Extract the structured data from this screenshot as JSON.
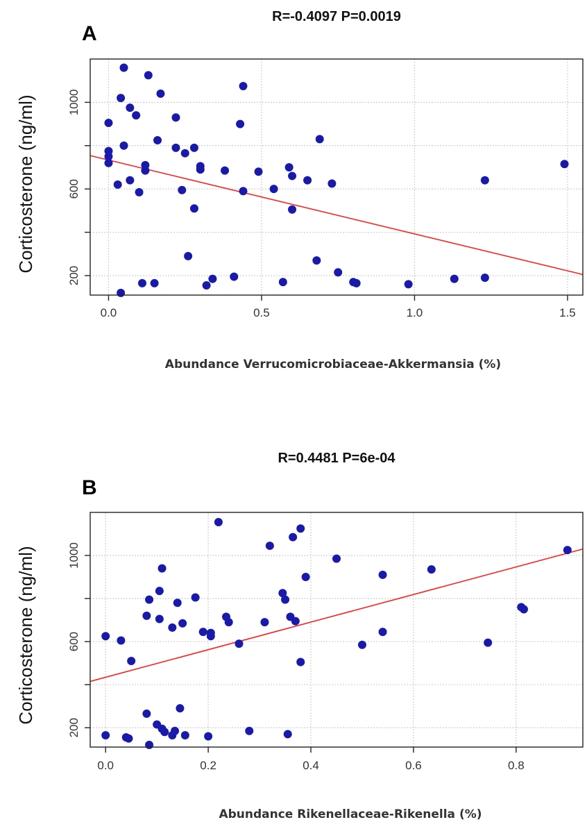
{
  "chart_data": [
    {
      "type": "scatter",
      "panel_label": "A",
      "title": "R=-0.4097 P=0.0019",
      "xlabel": "Abundance  Verrucomicrobiaceae-Akkermansia (%)",
      "ylabel": "Corticosterone (ng/ml)",
      "xlim": [
        -0.06,
        1.55
      ],
      "ylim": [
        110,
        1200
      ],
      "xticks": [
        0.0,
        0.5,
        1.0,
        1.5
      ],
      "xtick_labels": [
        "0.0",
        "0.5",
        "1.0",
        "1.5"
      ],
      "yticks": [
        200,
        400,
        600,
        800,
        1000
      ],
      "ytick_labels": [
        "200",
        "",
        "600",
        "",
        "1000"
      ],
      "grid": true,
      "point_color": "#1a1aaa",
      "line_color": "#ff2222",
      "trend_line": {
        "x": [
          -0.06,
          1.55
        ],
        "y": [
          754,
          205
        ]
      },
      "points": [
        {
          "x": 0.0,
          "y": 905
        },
        {
          "x": 0.0,
          "y": 775
        },
        {
          "x": 0.0,
          "y": 750
        },
        {
          "x": 0.0,
          "y": 720
        },
        {
          "x": 0.03,
          "y": 620
        },
        {
          "x": 0.04,
          "y": 120
        },
        {
          "x": 0.04,
          "y": 1020
        },
        {
          "x": 0.05,
          "y": 1160
        },
        {
          "x": 0.05,
          "y": 800
        },
        {
          "x": 0.07,
          "y": 975
        },
        {
          "x": 0.07,
          "y": 640
        },
        {
          "x": 0.09,
          "y": 940
        },
        {
          "x": 0.1,
          "y": 585
        },
        {
          "x": 0.11,
          "y": 165
        },
        {
          "x": 0.12,
          "y": 710
        },
        {
          "x": 0.12,
          "y": 685
        },
        {
          "x": 0.13,
          "y": 1125
        },
        {
          "x": 0.15,
          "y": 165
        },
        {
          "x": 0.16,
          "y": 825
        },
        {
          "x": 0.17,
          "y": 1040
        },
        {
          "x": 0.22,
          "y": 790
        },
        {
          "x": 0.22,
          "y": 930
        },
        {
          "x": 0.24,
          "y": 595
        },
        {
          "x": 0.25,
          "y": 765
        },
        {
          "x": 0.26,
          "y": 290
        },
        {
          "x": 0.28,
          "y": 790
        },
        {
          "x": 0.28,
          "y": 510
        },
        {
          "x": 0.3,
          "y": 705
        },
        {
          "x": 0.3,
          "y": 690
        },
        {
          "x": 0.32,
          "y": 155
        },
        {
          "x": 0.34,
          "y": 185
        },
        {
          "x": 0.38,
          "y": 685
        },
        {
          "x": 0.41,
          "y": 195
        },
        {
          "x": 0.43,
          "y": 900
        },
        {
          "x": 0.44,
          "y": 1075
        },
        {
          "x": 0.44,
          "y": 590
        },
        {
          "x": 0.49,
          "y": 680
        },
        {
          "x": 0.54,
          "y": 600
        },
        {
          "x": 0.57,
          "y": 170
        },
        {
          "x": 0.59,
          "y": 700
        },
        {
          "x": 0.6,
          "y": 660
        },
        {
          "x": 0.6,
          "y": 505
        },
        {
          "x": 0.65,
          "y": 640
        },
        {
          "x": 0.68,
          "y": 270
        },
        {
          "x": 0.69,
          "y": 830
        },
        {
          "x": 0.73,
          "y": 625
        },
        {
          "x": 0.75,
          "y": 215
        },
        {
          "x": 0.8,
          "y": 170
        },
        {
          "x": 0.81,
          "y": 165
        },
        {
          "x": 0.98,
          "y": 160
        },
        {
          "x": 1.13,
          "y": 185
        },
        {
          "x": 1.23,
          "y": 640
        },
        {
          "x": 1.23,
          "y": 190
        },
        {
          "x": 1.49,
          "y": 715
        }
      ]
    },
    {
      "type": "scatter",
      "panel_label": "B",
      "title": "R=0.4481 P=6e-04",
      "xlabel": "Abundance  Rikenellaceae-Rikenella (%)",
      "ylabel": "Corticosterone (ng/ml)",
      "xlim": [
        -0.03,
        0.93
      ],
      "ylim": [
        110,
        1200
      ],
      "xticks": [
        0.0,
        0.2,
        0.4,
        0.6,
        0.8
      ],
      "xtick_labels": [
        "0.0",
        "0.2",
        "0.4",
        "0.6",
        "0.8"
      ],
      "yticks": [
        200,
        400,
        600,
        800,
        1000
      ],
      "ytick_labels": [
        "200",
        "",
        "600",
        "",
        "1000"
      ],
      "grid": true,
      "point_color": "#1a1aaa",
      "line_color": "#ff2222",
      "trend_line": {
        "x": [
          -0.03,
          0.93
        ],
        "y": [
          415,
          1030
        ]
      },
      "points": [
        {
          "x": 0.0,
          "y": 625
        },
        {
          "x": 0.0,
          "y": 165
        },
        {
          "x": 0.03,
          "y": 605
        },
        {
          "x": 0.04,
          "y": 155
        },
        {
          "x": 0.045,
          "y": 150
        },
        {
          "x": 0.05,
          "y": 510
        },
        {
          "x": 0.08,
          "y": 720
        },
        {
          "x": 0.08,
          "y": 265
        },
        {
          "x": 0.085,
          "y": 795
        },
        {
          "x": 0.085,
          "y": 120
        },
        {
          "x": 0.1,
          "y": 215
        },
        {
          "x": 0.105,
          "y": 835
        },
        {
          "x": 0.105,
          "y": 705
        },
        {
          "x": 0.11,
          "y": 195
        },
        {
          "x": 0.11,
          "y": 940
        },
        {
          "x": 0.115,
          "y": 180
        },
        {
          "x": 0.13,
          "y": 665
        },
        {
          "x": 0.13,
          "y": 165
        },
        {
          "x": 0.135,
          "y": 185
        },
        {
          "x": 0.14,
          "y": 780
        },
        {
          "x": 0.145,
          "y": 290
        },
        {
          "x": 0.15,
          "y": 685
        },
        {
          "x": 0.155,
          "y": 165
        },
        {
          "x": 0.175,
          "y": 805
        },
        {
          "x": 0.19,
          "y": 645
        },
        {
          "x": 0.2,
          "y": 160
        },
        {
          "x": 0.205,
          "y": 625
        },
        {
          "x": 0.205,
          "y": 640
        },
        {
          "x": 0.22,
          "y": 1155
        },
        {
          "x": 0.235,
          "y": 715
        },
        {
          "x": 0.24,
          "y": 690
        },
        {
          "x": 0.26,
          "y": 590
        },
        {
          "x": 0.28,
          "y": 185
        },
        {
          "x": 0.31,
          "y": 690
        },
        {
          "x": 0.32,
          "y": 1045
        },
        {
          "x": 0.345,
          "y": 825
        },
        {
          "x": 0.35,
          "y": 795
        },
        {
          "x": 0.355,
          "y": 170
        },
        {
          "x": 0.36,
          "y": 715
        },
        {
          "x": 0.365,
          "y": 1085
        },
        {
          "x": 0.37,
          "y": 695
        },
        {
          "x": 0.38,
          "y": 1125
        },
        {
          "x": 0.38,
          "y": 505
        },
        {
          "x": 0.39,
          "y": 900
        },
        {
          "x": 0.45,
          "y": 985
        },
        {
          "x": 0.5,
          "y": 585
        },
        {
          "x": 0.54,
          "y": 910
        },
        {
          "x": 0.54,
          "y": 645
        },
        {
          "x": 0.635,
          "y": 935
        },
        {
          "x": 0.745,
          "y": 595
        },
        {
          "x": 0.81,
          "y": 760
        },
        {
          "x": 0.815,
          "y": 750
        },
        {
          "x": 0.9,
          "y": 1025
        }
      ]
    }
  ]
}
